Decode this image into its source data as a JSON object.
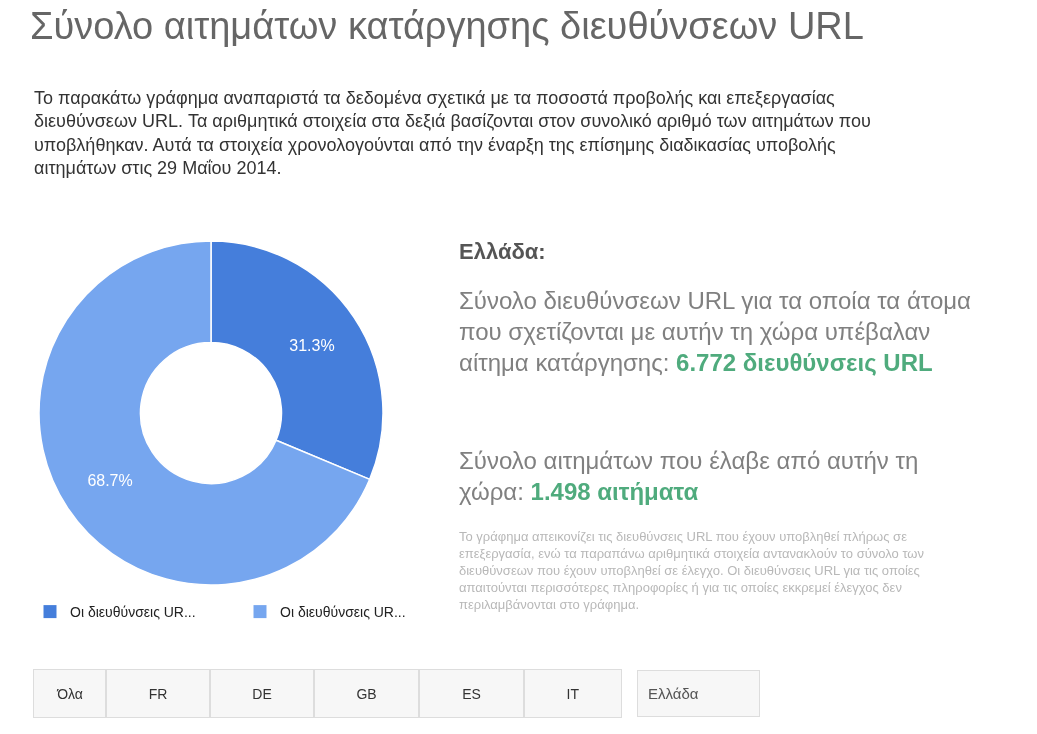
{
  "chart_data": {
    "type": "donut",
    "title": "Σύνολο αιτημάτων κατάργησης διευθύνσεων URL",
    "subtitle": "Το παρακάτω γράφημα αναπαριστά τα δεδομένα σχετικά με τα ποσοστά προβολής και επεξεργασίας διευθύνσεων URL. Τα αριθμητικά στοιχεία στα δεξιά βασίζονται στον συνολικό αριθμό των αιτημάτων που υποβλήθηκαν. Αυτά τα στοιχεία χρονολογούνται από την έναρξη της επίσημης διαδικασίας υποβολής αιτημάτων στις 29 Μαΐου 2014.",
    "categories": [
      "Οι διευθύνσεις UR...",
      "Οι διευθύνσεις UR..."
    ],
    "values": [
      31.3,
      68.7
    ],
    "colors": [
      "#457edb",
      "#76a6ef"
    ],
    "value_labels": [
      "31.3%",
      "68.7%"
    ],
    "legend": "bottom",
    "annotations": [
      "Ελλάδα:",
      "Σύνολο διευθύνσεων URL για τα οποία τα άτομα που σχετίζονται με αυτήν τη χώρα υπέβαλαν αίτημα κατάργησης:",
      "6.772 διευθύνσεις URL",
      "Σύνολο αιτημάτων που έλαβε από αυτήν τη χώρα:",
      "1.498 αιτήματα",
      "Το γράφημα απεικονίζει τις διευθύνσεις URL που έχουν υποβληθεί πλήρως σε επεξεργασία, ενώ τα παραπάνω αριθμητικά στοιχεία αντανακλούν το σύνολο των διευθύνσεων που έχουν υποβληθεί σε έλεγχο. Οι διευθύνσεις URL για τις οποίες απαιτούνται περισσότερες πληροφορίες ή για τις οποίες εκκρεμεί έλεγχος δεν περιλαμβάνονται στο γράφημα.",
      "Όλα",
      "FR",
      "DE",
      "GB",
      "ES",
      "IT",
      "Ελλάδα"
    ]
  }
}
